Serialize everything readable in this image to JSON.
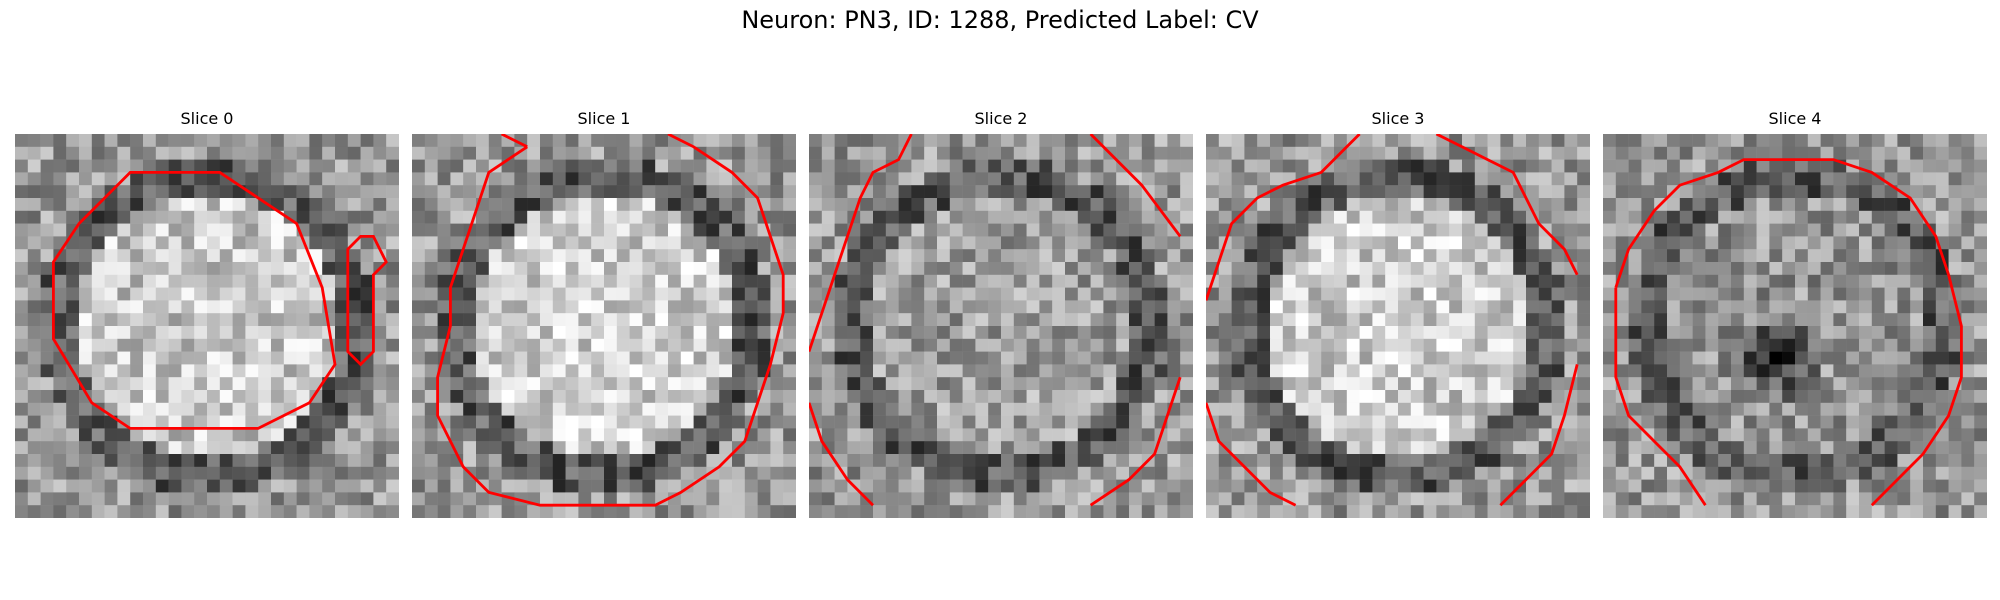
{
  "figure": {
    "title": "Neuron: PN3, ID: 1288, Predicted Label: CV"
  },
  "panels": [
    {
      "title": "Slice 0",
      "seed": 11,
      "center_bright": 0.78,
      "dark_spot": null
    },
    {
      "title": "Slice 1",
      "seed": 23,
      "center_bright": 0.82,
      "dark_spot": null
    },
    {
      "title": "Slice 2",
      "seed": 37,
      "center_bright": 0.62,
      "dark_spot": null
    },
    {
      "title": "Slice 3",
      "seed": 41,
      "center_bright": 0.8,
      "dark_spot": null
    },
    {
      "title": "Slice 4",
      "seed": 53,
      "center_bright": 0.58,
      "dark_spot": "center"
    }
  ],
  "colors": {
    "contour": "#ff0000"
  }
}
